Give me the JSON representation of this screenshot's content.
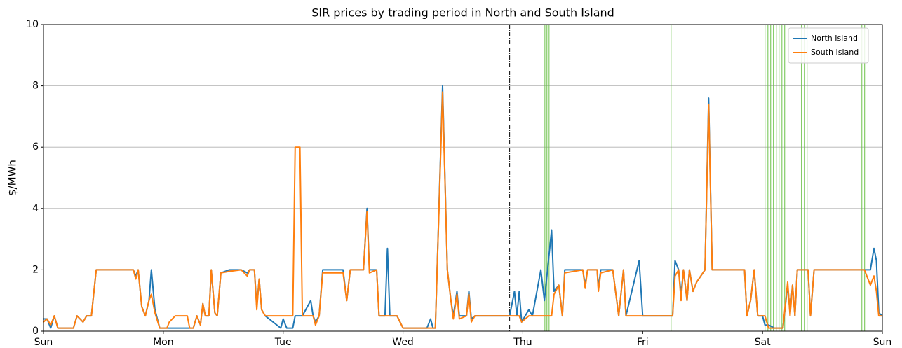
{
  "chart_data": {
    "type": "line",
    "title": "SIR prices by trading period in North and South Island",
    "ylabel": "$/MWh",
    "xlim": [
      0,
      7
    ],
    "xticks": [
      {
        "value": 0,
        "label": "Sun"
      },
      {
        "value": 1,
        "label": "Mon"
      },
      {
        "value": 2,
        "label": "Tue"
      },
      {
        "value": 3,
        "label": "Wed"
      },
      {
        "value": 4,
        "label": "Thu"
      },
      {
        "value": 5,
        "label": "Fri"
      },
      {
        "value": 6,
        "label": "Sat"
      },
      {
        "value": 7,
        "label": "Sun"
      }
    ],
    "ylim": [
      0,
      10
    ],
    "yticks": [
      0,
      2,
      4,
      6,
      8,
      10
    ],
    "grid": "y",
    "legend": "upper right",
    "x": [
      0,
      0.03,
      0.06,
      0.09,
      0.12,
      0.25,
      0.28,
      0.33,
      0.36,
      0.4,
      0.44,
      0.75,
      0.77,
      0.79,
      0.82,
      0.85,
      0.88,
      0.9,
      0.93,
      0.97,
      1.03,
      1.05,
      1.1,
      1.2,
      1.22,
      1.25,
      1.28,
      1.31,
      1.33,
      1.35,
      1.38,
      1.4,
      1.43,
      1.45,
      1.48,
      1.55,
      1.65,
      1.7,
      1.72,
      1.76,
      1.78,
      1.8,
      1.82,
      1.85,
      1.98,
      2,
      2.03,
      2.08,
      2.1,
      2.14,
      2.16,
      2.23,
      2.25,
      2.27,
      2.3,
      2.33,
      2.5,
      2.53,
      2.56,
      2.67,
      2.7,
      2.72,
      2.78,
      2.8,
      2.85,
      2.87,
      2.89,
      2.95,
      3,
      3.2,
      3.23,
      3.25,
      3.27,
      3.33,
      3.37,
      3.4,
      3.42,
      3.45,
      3.47,
      3.53,
      3.55,
      3.57,
      3.6,
      3.89,
      3.93,
      3.95,
      3.97,
      3.99,
      4.05,
      4.08,
      4.15,
      4.18,
      4.24,
      4.26,
      4.3,
      4.33,
      4.35,
      4.5,
      4.52,
      4.54,
      4.62,
      4.63,
      4.65,
      4.75,
      4.8,
      4.84,
      4.86,
      4.97,
      5,
      5.25,
      5.27,
      5.3,
      5.32,
      5.34,
      5.37,
      5.39,
      5.42,
      5.45,
      5.52,
      5.55,
      5.58,
      5.85,
      5.87,
      5.9,
      5.93,
      5.96,
      6,
      6.02,
      6.05,
      6.1,
      6.17,
      6.21,
      6.23,
      6.25,
      6.27,
      6.29,
      6.38,
      6.4,
      6.43,
      6.85,
      6.9,
      6.93,
      6.95,
      6.97,
      7
    ],
    "series": [
      {
        "name": "North Island",
        "color": "#1f77b4",
        "values": [
          0.4,
          0.4,
          0.1,
          0.5,
          0.1,
          0.1,
          0.5,
          0.3,
          0.5,
          0.5,
          2,
          2,
          1.8,
          2,
          0.8,
          0.5,
          1,
          2,
          0.7,
          0.1,
          0.1,
          0.1,
          0.1,
          0.1,
          0.1,
          0.1,
          0.5,
          0.2,
          0.9,
          0.5,
          0.5,
          2,
          0.6,
          0.5,
          1.9,
          2,
          2,
          1.9,
          2,
          2,
          0.8,
          1.7,
          0.7,
          0.5,
          0.1,
          0.4,
          0.1,
          0.1,
          0.5,
          0.5,
          0.5,
          1,
          0.5,
          0.3,
          0.5,
          2,
          2,
          1,
          2,
          2,
          4,
          2,
          2,
          0.5,
          0.5,
          2.7,
          0.5,
          0.5,
          0.1,
          0.1,
          0.4,
          0.1,
          0.1,
          8,
          2,
          1,
          0.5,
          1.3,
          0.5,
          0.5,
          1.3,
          0.4,
          0.5,
          0.5,
          1.3,
          0.5,
          1.3,
          0.3,
          0.7,
          0.5,
          2,
          1,
          3.3,
          1.3,
          1.5,
          0.5,
          2,
          2,
          1.5,
          2,
          2,
          1.4,
          2,
          2,
          0.5,
          2,
          0.5,
          2.3,
          0.5,
          0.5,
          2.3,
          2,
          1.2,
          2,
          1,
          2,
          1.3,
          1.6,
          2,
          7.6,
          2,
          2,
          0.5,
          1,
          2,
          0.5,
          0.5,
          0.2,
          0.2,
          0.1,
          0.1,
          1.5,
          0.6,
          1.5,
          0.5,
          2,
          2,
          0.5,
          2,
          2,
          2,
          2.7,
          2.3,
          0.6,
          0.5
        ]
      },
      {
        "name": "South Island",
        "color": "#ff7f0e",
        "values": [
          0.3,
          0.4,
          0.2,
          0.5,
          0.1,
          0.1,
          0.5,
          0.3,
          0.5,
          0.5,
          2,
          2,
          1.7,
          2,
          0.8,
          0.5,
          1,
          1.2,
          0.6,
          0.1,
          0.1,
          0.3,
          0.5,
          0.5,
          0.1,
          0.1,
          0.5,
          0.2,
          0.9,
          0.5,
          0.5,
          2,
          0.6,
          0.5,
          1.9,
          1.95,
          2,
          1.8,
          2,
          2,
          0.7,
          1.7,
          0.7,
          0.5,
          0.5,
          0.5,
          0.5,
          0.5,
          6,
          6,
          0.5,
          0.5,
          0.5,
          0.2,
          0.5,
          1.9,
          1.9,
          1,
          2,
          2,
          3.9,
          1.9,
          2,
          0.5,
          0.5,
          0.5,
          0.5,
          0.5,
          0.1,
          0.1,
          0.1,
          0.1,
          0.1,
          7.8,
          2,
          1,
          0.4,
          1.2,
          0.4,
          0.5,
          1.2,
          0.3,
          0.5,
          0.5,
          0.5,
          0.5,
          0.5,
          0.3,
          0.5,
          0.5,
          0.5,
          0.5,
          0.5,
          1.2,
          1.5,
          0.5,
          1.9,
          2,
          1.4,
          2,
          2,
          1.3,
          1.9,
          2,
          0.5,
          2,
          0.5,
          0.5,
          0.5,
          0.5,
          1.8,
          2,
          1,
          2,
          1,
          2,
          1.3,
          1.6,
          2,
          7.4,
          2,
          2,
          0.5,
          1,
          2,
          0.5,
          0.5,
          0.5,
          0.1,
          0.1,
          0.1,
          1.6,
          0.5,
          1.5,
          0.5,
          2,
          2,
          0.5,
          2,
          2,
          1.5,
          1.8,
          1.3,
          0.5,
          0.5
        ]
      }
    ],
    "marker_line": {
      "x": 3.89,
      "color": "#000000"
    },
    "event_lines": {
      "color": "#6cc24a",
      "x": [
        4.184,
        4.201,
        4.219,
        5.237,
        6.021,
        6.045,
        6.068,
        6.091,
        6.115,
        6.138,
        6.162,
        6.185,
        6.325,
        6.349,
        6.372,
        6.829,
        6.852
      ]
    }
  }
}
